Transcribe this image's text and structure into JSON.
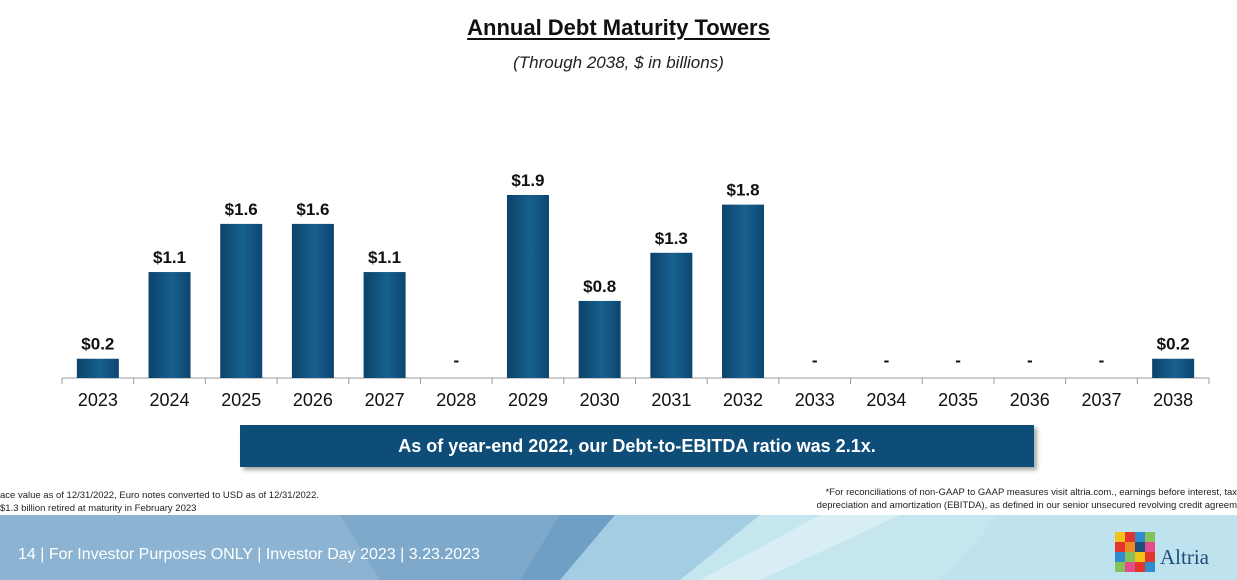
{
  "title": "Annual Debt Maturity Towers",
  "subtitle": "(Through 2038, $ in billions)",
  "colors": {
    "bar": "#0e4d78",
    "bar_highlight": "#1e6c9f",
    "callout_bg": "#0e4d78",
    "footer_bg": "#b5dcec"
  },
  "chart_data": {
    "type": "bar",
    "title": "Annual Debt Maturity Towers",
    "subtitle": "(Through 2038, $ in billions)",
    "categories": [
      "2023",
      "2024",
      "2025",
      "2026",
      "2027",
      "2028",
      "2029",
      "2030",
      "2031",
      "2032",
      "2033",
      "2034",
      "2035",
      "2036",
      "2037",
      "2038"
    ],
    "values": [
      0.2,
      1.1,
      1.6,
      1.6,
      1.1,
      0,
      1.9,
      0.8,
      1.3,
      1.8,
      0,
      0,
      0,
      0,
      0,
      0.2
    ],
    "data_labels": [
      "$0.2",
      "$1.1",
      "$1.6",
      "$1.6",
      "$1.1",
      "-",
      "$1.9",
      "$0.8",
      "$1.3",
      "$1.8",
      "-",
      "-",
      "-",
      "-",
      "-",
      "$0.2"
    ],
    "ylim": [
      0,
      2.0
    ],
    "grid": false,
    "legend": "none"
  },
  "callout": "As of year-end 2022, our Debt-to-EBITDA ratio was 2.1x.",
  "footnotes": {
    "left_line1": "ace value as of 12/31/2022, Euro notes converted to USD as of 12/31/2022.",
    "left_line2": "$1.3 billion retired at maturity in February 2023",
    "right_line1": "*For reconciliations of non-GAAP to GAAP measures visit altria.com., earnings before interest, tax",
    "right_line2": "depreciation and amortization (EBITDA), as defined in our senior unsecured revolving credit agreem"
  },
  "footer": {
    "text": "14  |  For Investor Purposes ONLY | Investor Day 2023 | 3.23.2023",
    "logo_text": "Altria"
  }
}
